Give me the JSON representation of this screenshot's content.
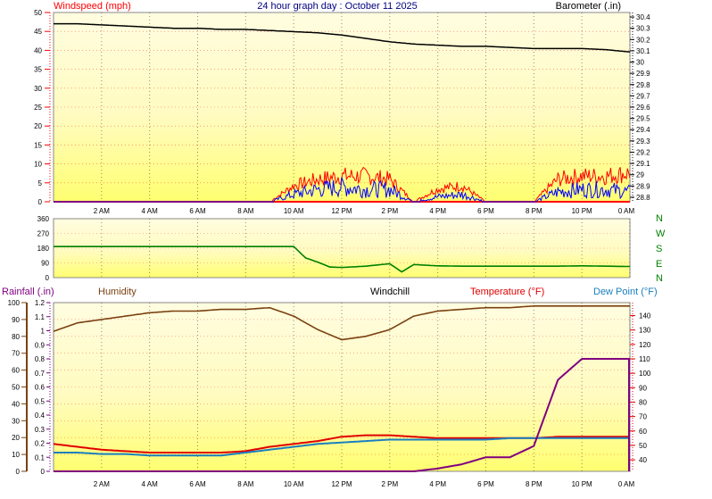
{
  "title": "24 hour graph day : October 11 2025",
  "colors": {
    "windspeed": "#ff0000",
    "gust_fill": "#ff0000",
    "avg_wind": "#0000ff",
    "barometer": "#000000",
    "direction": "#008000",
    "humidity": "#7a4010",
    "temperature": "#e00000",
    "dewpoint": "#1a7fbf",
    "rainfall": "#800080",
    "windchill": "#000000",
    "plot_top": "#fffcd8",
    "plot_bottom": "#ffff66",
    "grid": "#ff0000",
    "axis": "#333333"
  },
  "time_ticks": [
    "2 AM",
    "4 AM",
    "6 AM",
    "8 AM",
    "10 AM",
    "12 PM",
    "2 PM",
    "4 PM",
    "6 PM",
    "8 PM",
    "10 PM",
    "0 AM"
  ],
  "panels": {
    "wind": {
      "left_label": "Windspeed (mph)",
      "right_label": "Barometer (.in)",
      "left_ticks": [
        "0",
        "5",
        "10",
        "15",
        "20",
        "25",
        "30",
        "35",
        "40",
        "45",
        "50"
      ],
      "right_ticks": [
        "28.8",
        "28.9",
        "29",
        "29.1",
        "29.2",
        "29.3",
        "29.4",
        "29.5",
        "29.6",
        "29.7",
        "29.8",
        "29.9",
        "30",
        "30.1",
        "30.2",
        "30.3",
        "30.4"
      ]
    },
    "direction": {
      "left_ticks": [
        "0",
        "90",
        "180",
        "270",
        "360"
      ],
      "compass": [
        "N",
        "W",
        "S",
        "E",
        "N"
      ]
    },
    "weather": {
      "labels": {
        "rainfall": "Rainfall (.in)",
        "humidity": "Humidity",
        "windchill": "Windchill",
        "temperature": "Temperature (°F)",
        "dewpoint": "Dew Point (°F)"
      },
      "humidity_ticks": [
        "0",
        "10",
        "20",
        "30",
        "40",
        "50",
        "60",
        "70",
        "80",
        "90",
        "100"
      ],
      "rain_ticks": [
        "0",
        "0.1",
        "0.2",
        "0.3",
        "0.4",
        "0.5",
        "0.6",
        "0.7",
        "0.8",
        "0.9",
        "1",
        "1.1",
        "1.2"
      ],
      "temp_ticks": [
        "40",
        "50",
        "60",
        "70",
        "80",
        "90",
        "100",
        "110",
        "120",
        "130",
        "140"
      ]
    }
  },
  "chart_data": [
    {
      "type": "line",
      "panel": "wind",
      "title": "24 hour graph day : October 11 2025",
      "xlabel": "",
      "x_hours": [
        0,
        1,
        2,
        3,
        4,
        5,
        6,
        7,
        8,
        9,
        10,
        11,
        12,
        13,
        14,
        15,
        16,
        17,
        18,
        19,
        20,
        21,
        22,
        23,
        24
      ],
      "ylabel": "Windspeed (mph)",
      "ylim": [
        0,
        50
      ],
      "y2label": "Barometer (.in)",
      "y2lim": [
        28.76,
        30.44
      ],
      "series": [
        {
          "name": "Barometer (.in)",
          "axis": "right",
          "values": [
            30.34,
            30.34,
            30.33,
            30.32,
            30.31,
            30.3,
            30.3,
            30.29,
            30.29,
            30.28,
            30.27,
            30.26,
            30.24,
            30.21,
            30.18,
            30.16,
            30.15,
            30.14,
            30.14,
            30.13,
            30.12,
            30.12,
            30.12,
            30.11,
            30.09
          ]
        },
        {
          "name": "Windspeed (mph)",
          "axis": "left",
          "values": [
            0,
            0,
            0,
            0,
            0,
            0,
            0,
            0,
            0,
            0,
            3,
            5,
            6,
            5,
            5,
            0,
            2,
            3,
            0,
            0,
            0,
            4,
            5,
            5,
            4
          ]
        },
        {
          "name": "Gust (mph)",
          "axis": "left",
          "values": [
            0,
            0,
            0,
            0,
            0,
            0,
            0,
            0,
            0,
            0,
            5,
            7,
            8,
            8,
            7,
            0,
            4,
            5,
            0,
            0,
            0,
            7,
            8,
            8,
            9
          ]
        }
      ]
    },
    {
      "type": "line",
      "panel": "direction",
      "ylim": [
        0,
        360
      ],
      "x_hours": [
        0,
        1,
        2,
        3,
        4,
        5,
        6,
        7,
        8,
        9,
        10,
        10.5,
        11,
        11.5,
        12,
        13,
        14,
        14.5,
        15,
        16,
        17,
        18,
        19,
        20,
        21,
        22,
        23,
        24
      ],
      "series": [
        {
          "name": "Wind Direction",
          "values": [
            190,
            190,
            190,
            190,
            190,
            190,
            190,
            190,
            190,
            190,
            190,
            120,
            95,
            65,
            62,
            70,
            85,
            35,
            80,
            72,
            70,
            70,
            70,
            70,
            70,
            72,
            70,
            68
          ]
        }
      ]
    },
    {
      "type": "line",
      "panel": "weather",
      "x_hours": [
        0,
        1,
        2,
        3,
        4,
        5,
        6,
        7,
        8,
        9,
        10,
        11,
        12,
        13,
        14,
        15,
        16,
        17,
        18,
        19,
        20,
        21,
        22,
        23,
        24
      ],
      "ylim_humidity": [
        0,
        100
      ],
      "ylim_rain": [
        0,
        1.2
      ],
      "ylim_temp": [
        32,
        149
      ],
      "series": [
        {
          "name": "Humidity",
          "axis": "humidity",
          "values": [
            83,
            88,
            90,
            92,
            94,
            95,
            95,
            96,
            96,
            97,
            92,
            84,
            78,
            80,
            84,
            92,
            95,
            96,
            97,
            97,
            98,
            98,
            98,
            98,
            98
          ]
        },
        {
          "name": "Temperature (°F)",
          "axis": "temp",
          "values": [
            51,
            49,
            47,
            46,
            45,
            45,
            45,
            45,
            46,
            49,
            51,
            53,
            56,
            57,
            57,
            56,
            55,
            55,
            55,
            55,
            55,
            56,
            56,
            56,
            56
          ]
        },
        {
          "name": "Dew Point (°F)",
          "axis": "temp",
          "values": [
            45,
            45,
            44,
            44,
            43,
            43,
            43,
            43,
            45,
            47,
            49,
            51,
            52,
            53,
            54,
            54,
            54,
            54,
            54,
            55,
            55,
            55,
            55,
            55,
            55
          ]
        },
        {
          "name": "Rainfall (.in)",
          "axis": "rain",
          "values": [
            0,
            0,
            0,
            0,
            0,
            0,
            0,
            0,
            0,
            0,
            0,
            0,
            0,
            0,
            0,
            0,
            0.02,
            0.05,
            0.1,
            0.1,
            0.18,
            0.65,
            0.8,
            0.8,
            0.8
          ]
        }
      ]
    }
  ]
}
